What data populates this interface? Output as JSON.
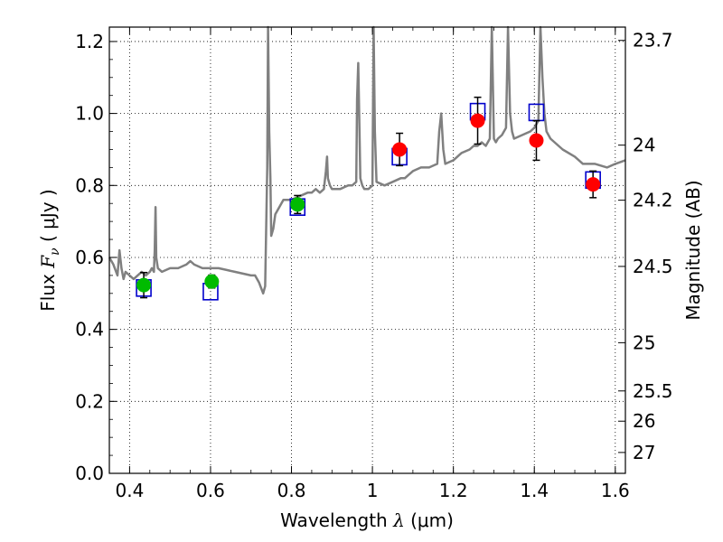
{
  "chart_data": {
    "type": "scatter",
    "xlabel": {
      "pre": "Wavelength  ",
      "sym": "λ",
      "post": " (μm)"
    },
    "ylabel": {
      "pre": "Flux  ",
      "sym": "F",
      "sub": "ν",
      "post": "  ( μJy )"
    },
    "ylabel_right": "Magnitude (AB)",
    "xlim": [
      0.35,
      1.625
    ],
    "ylim": [
      0.0,
      1.24
    ],
    "grid": true,
    "xticks": [
      0.4,
      0.6,
      0.8,
      1.0,
      1.2,
      1.4,
      1.6
    ],
    "xtick_labels": [
      "0.4",
      "0.6",
      "0.8",
      "1",
      "1.2",
      "1.4",
      "1.6"
    ],
    "yticks": [
      0.0,
      0.2,
      0.4,
      0.6,
      0.8,
      1.0,
      1.2
    ],
    "ytick_labels": [
      "0.0",
      "0.2",
      "0.4",
      "0.6",
      "0.8",
      "1.0",
      "1.2"
    ],
    "right_ticks": [
      {
        "label": "23.7",
        "flux": 1.203
      },
      {
        "label": "24",
        "flux": 0.912
      },
      {
        "label": "24.2",
        "flux": 0.759
      },
      {
        "label": "24.5",
        "flux": 0.575
      },
      {
        "label": "25",
        "flux": 0.363
      },
      {
        "label": "25.5",
        "flux": 0.229
      },
      {
        "label": "26",
        "flux": 0.145
      },
      {
        "label": "27",
        "flux": 0.058
      }
    ],
    "colors": {
      "spectrum": "#808080",
      "model_box": "#0000cc",
      "green_point": "#00bb00",
      "red_point": "#ff0000",
      "error_bar": "#000000"
    },
    "spectrum": {
      "x": [
        0.35,
        0.36,
        0.37,
        0.375,
        0.38,
        0.385,
        0.39,
        0.4,
        0.41,
        0.42,
        0.43,
        0.44,
        0.45,
        0.455,
        0.46,
        0.462,
        0.464,
        0.466,
        0.47,
        0.48,
        0.5,
        0.52,
        0.54,
        0.55,
        0.56,
        0.58,
        0.6,
        0.62,
        0.64,
        0.66,
        0.68,
        0.7,
        0.71,
        0.72,
        0.73,
        0.735,
        0.74,
        0.742,
        0.745,
        0.748,
        0.75,
        0.755,
        0.76,
        0.77,
        0.78,
        0.8,
        0.82,
        0.84,
        0.85,
        0.86,
        0.87,
        0.88,
        0.885,
        0.888,
        0.89,
        0.895,
        0.9,
        0.92,
        0.94,
        0.95,
        0.96,
        0.962,
        0.965,
        0.968,
        0.97,
        0.975,
        0.98,
        0.99,
        1.0,
        1.003,
        1.006,
        1.01,
        1.03,
        1.05,
        1.07,
        1.08,
        1.09,
        1.1,
        1.12,
        1.14,
        1.16,
        1.165,
        1.17,
        1.175,
        1.18,
        1.2,
        1.22,
        1.24,
        1.25,
        1.26,
        1.27,
        1.28,
        1.29,
        1.295,
        1.3,
        1.305,
        1.31,
        1.32,
        1.33,
        1.335,
        1.34,
        1.345,
        1.35,
        1.37,
        1.39,
        1.4,
        1.41,
        1.415,
        1.42,
        1.425,
        1.43,
        1.44,
        1.45,
        1.47,
        1.5,
        1.52,
        1.55,
        1.58,
        1.6,
        1.625
      ],
      "y": [
        0.6,
        0.58,
        0.55,
        0.62,
        0.57,
        0.54,
        0.56,
        0.55,
        0.54,
        0.55,
        0.56,
        0.55,
        0.56,
        0.57,
        0.56,
        0.62,
        0.74,
        0.6,
        0.57,
        0.56,
        0.57,
        0.57,
        0.58,
        0.59,
        0.58,
        0.57,
        0.57,
        0.57,
        0.565,
        0.56,
        0.555,
        0.55,
        0.55,
        0.53,
        0.5,
        0.52,
        0.85,
        1.24,
        0.95,
        0.82,
        0.66,
        0.68,
        0.72,
        0.74,
        0.76,
        0.76,
        0.77,
        0.78,
        0.78,
        0.79,
        0.78,
        0.79,
        0.84,
        0.88,
        0.82,
        0.8,
        0.79,
        0.79,
        0.8,
        0.8,
        0.81,
        1.04,
        1.14,
        0.95,
        0.82,
        0.8,
        0.79,
        0.79,
        0.8,
        1.24,
        0.95,
        0.81,
        0.8,
        0.81,
        0.82,
        0.82,
        0.83,
        0.84,
        0.85,
        0.85,
        0.86,
        0.95,
        1.0,
        0.9,
        0.86,
        0.87,
        0.89,
        0.9,
        0.91,
        0.91,
        0.92,
        0.91,
        0.93,
        1.24,
        0.93,
        0.92,
        0.93,
        0.94,
        0.96,
        1.24,
        1.0,
        0.95,
        0.93,
        0.94,
        0.95,
        0.96,
        0.98,
        1.24,
        1.1,
        1.0,
        0.95,
        0.93,
        0.92,
        0.9,
        0.88,
        0.86,
        0.86,
        0.85,
        0.86,
        0.87
      ]
    },
    "model_boxes": [
      {
        "x": 0.435,
        "y": 0.515
      },
      {
        "x": 0.6,
        "y": 0.505
      },
      {
        "x": 0.815,
        "y": 0.74
      },
      {
        "x": 1.067,
        "y": 0.88
      },
      {
        "x": 1.26,
        "y": 1.005
      },
      {
        "x": 1.405,
        "y": 1.003
      },
      {
        "x": 1.545,
        "y": 0.815
      }
    ],
    "green_points": [
      {
        "x": 0.435,
        "y": 0.523,
        "err": 0.035
      },
      {
        "x": 0.603,
        "y": 0.533,
        "err": 0.018
      },
      {
        "x": 0.815,
        "y": 0.747,
        "err": 0.025
      }
    ],
    "red_points": [
      {
        "x": 1.067,
        "y": 0.9,
        "err": 0.045
      },
      {
        "x": 1.26,
        "y": 0.98,
        "err": 0.065
      },
      {
        "x": 1.405,
        "y": 0.925,
        "err": 0.055
      },
      {
        "x": 1.545,
        "y": 0.803,
        "err": 0.037
      }
    ]
  }
}
